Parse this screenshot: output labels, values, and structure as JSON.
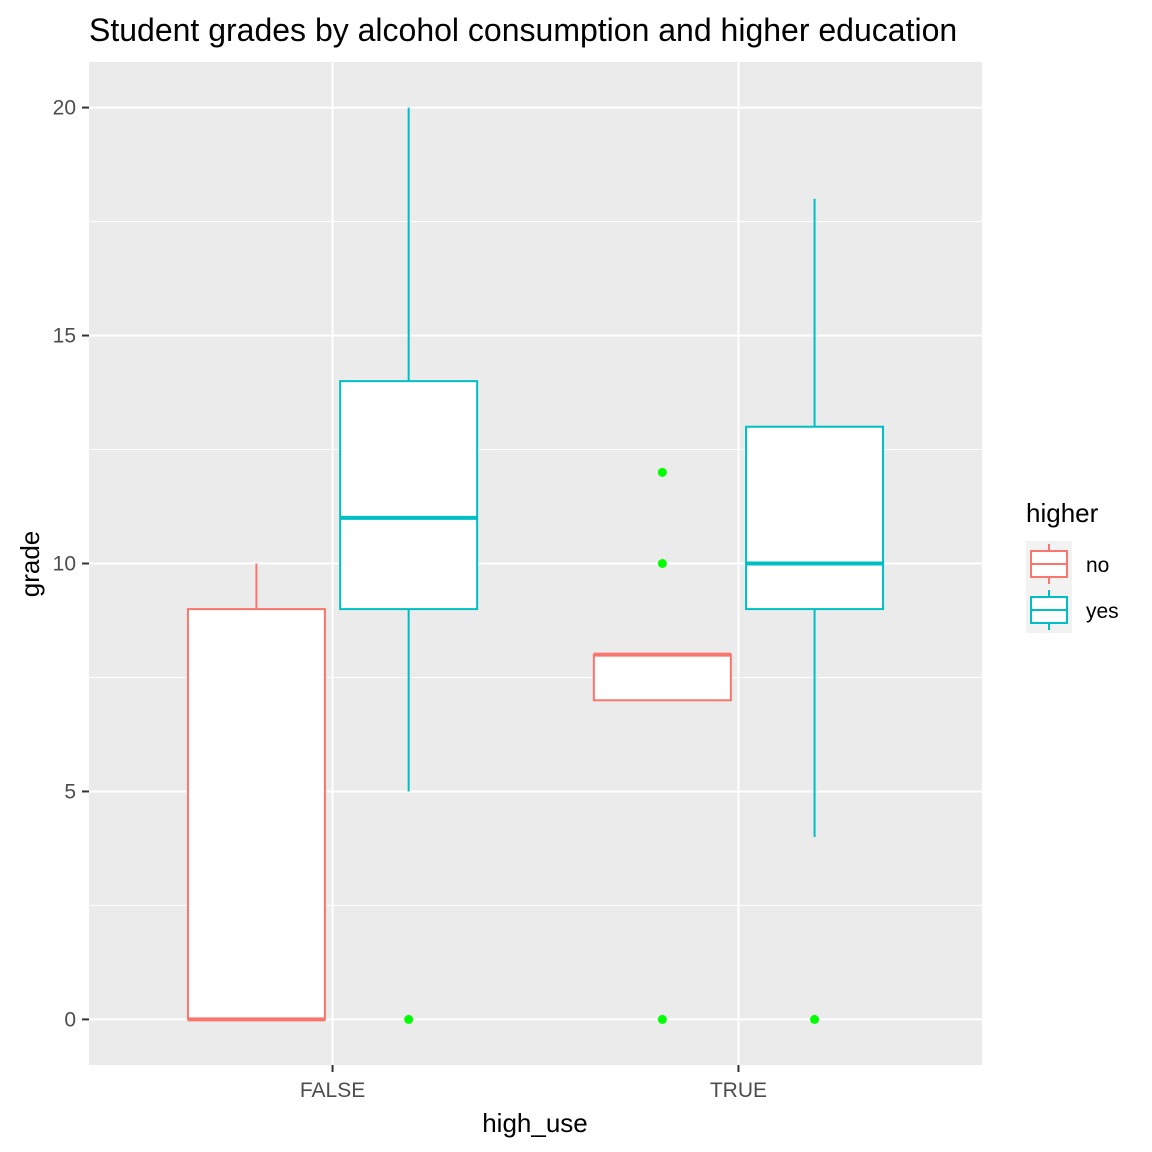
{
  "chart_data": {
    "type": "boxplot",
    "title": "Student grades by alcohol consumption and higher education",
    "xlabel": "high_use",
    "ylabel": "grade",
    "categories": [
      "FALSE",
      "TRUE"
    ],
    "ylim": [
      -1,
      21
    ],
    "yticks": [
      0,
      5,
      10,
      15,
      20
    ],
    "grid": true,
    "legend": {
      "title": "higher",
      "position": "right",
      "entries": [
        {
          "label": "no",
          "color": "#F8766D"
        },
        {
          "label": "yes",
          "color": "#00BFC4"
        }
      ]
    },
    "outlier_color": "#00FF00",
    "series": [
      {
        "label": "no",
        "color": "#F8766D",
        "boxes": [
          {
            "category": "FALSE",
            "lower_whisker": 0,
            "q1": 0,
            "median": 0,
            "q3": 9,
            "upper_whisker": 10,
            "outliers": []
          },
          {
            "category": "TRUE",
            "lower_whisker": 7,
            "q1": 7,
            "median": 8,
            "q3": 8,
            "upper_whisker": 8,
            "outliers": [
              0,
              10,
              12
            ]
          }
        ]
      },
      {
        "label": "yes",
        "color": "#00BFC4",
        "boxes": [
          {
            "category": "FALSE",
            "lower_whisker": 5,
            "q1": 9,
            "median": 11,
            "q3": 14,
            "upper_whisker": 20,
            "outliers": [
              0
            ]
          },
          {
            "category": "TRUE",
            "lower_whisker": 4,
            "q1": 9,
            "median": 10,
            "q3": 13,
            "upper_whisker": 18,
            "outliers": [
              0
            ]
          }
        ]
      }
    ]
  }
}
